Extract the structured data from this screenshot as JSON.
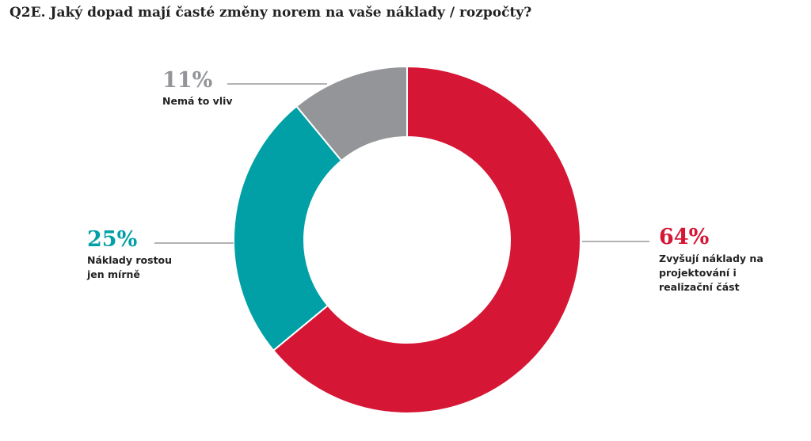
{
  "chart_data": {
    "type": "donut",
    "title": "Q2E. Jaký dopad mají časté změny norem na vaše náklady / rozpočty?",
    "categories": [
      "Zvyšují náklady na projektování i realizační část",
      "Náklady rostou jen mírně",
      "Nemá to vliv"
    ],
    "values": [
      64,
      25,
      11
    ],
    "value_labels": [
      "64%",
      "25%",
      "11%"
    ],
    "colors": [
      "#d51635",
      "#00a0a6",
      "#939598"
    ]
  }
}
